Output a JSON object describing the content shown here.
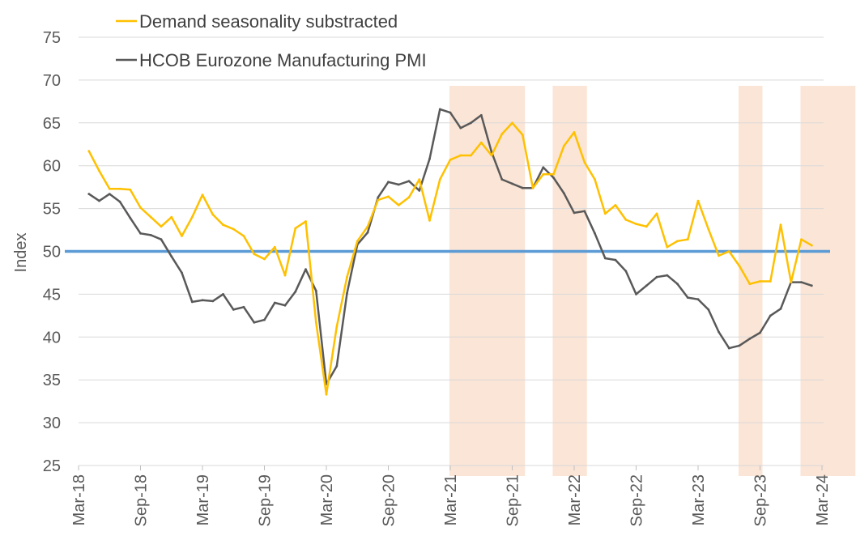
{
  "chart_data": {
    "type": "line",
    "title": "",
    "xlabel": "",
    "ylabel": "Index",
    "ylim": [
      25,
      75
    ],
    "yticks": [
      25,
      30,
      35,
      40,
      45,
      50,
      55,
      60,
      65,
      70,
      75
    ],
    "grid": "horizontal",
    "x_start": "Apr-18",
    "x_tick_labels": [
      "Mar-18",
      "Sep-18",
      "Mar-19",
      "Sep-19",
      "Mar-20",
      "Sep-20",
      "Mar-21",
      "Sep-21",
      "Mar-22",
      "Sep-22",
      "Mar-23",
      "Sep-23",
      "Mar-24"
    ],
    "reference_line": {
      "value": 50,
      "color": "#5B9BD5"
    },
    "shaded_periods": [
      {
        "from_month": 36,
        "to_month": 43
      },
      {
        "from_month": 46,
        "to_month": 49
      },
      {
        "from_month": 64,
        "to_month": 66
      },
      {
        "from_month": 70,
        "to_month": 75
      }
    ],
    "legend_position": "top-left",
    "series": [
      {
        "name": "Demand seasonality substracted",
        "color": "#FFC000",
        "values": [
          61.7,
          59.4,
          57.3,
          57.3,
          57.2,
          55.1,
          54.0,
          52.9,
          54.0,
          51.8,
          54.0,
          56.6,
          54.3,
          53.1,
          52.6,
          51.8,
          49.7,
          49.1,
          50.5,
          47.2,
          52.7,
          53.5,
          41.7,
          33.3,
          41.2,
          47.0,
          51.2,
          52.9,
          56.0,
          56.4,
          55.4,
          56.3,
          58.4,
          53.6,
          58.4,
          60.7,
          61.2,
          61.2,
          62.7,
          61.2,
          63.7,
          65.0,
          63.6,
          57.4,
          59.0,
          59.0,
          62.3,
          63.9,
          60.4,
          58.4,
          54.4,
          55.4,
          53.7,
          53.2,
          52.9,
          54.4,
          50.5,
          51.2,
          51.4,
          55.9,
          52.6,
          49.5,
          50.0,
          48.3,
          46.2,
          46.5,
          46.5,
          53.1,
          46.4,
          51.4,
          50.7
        ]
      },
      {
        "name": "HCOB Eurozone Manufacturing PMI",
        "color": "#595959",
        "values": [
          56.7,
          55.9,
          56.7,
          55.8,
          53.9,
          52.1,
          51.9,
          51.4,
          49.4,
          47.5,
          44.1,
          44.3,
          44.2,
          45.0,
          43.2,
          43.5,
          41.7,
          42.0,
          44.0,
          43.7,
          45.3,
          47.9,
          45.4,
          34.5,
          36.6,
          45.1,
          50.8,
          52.2,
          56.3,
          58.1,
          57.8,
          58.2,
          57.1,
          60.8,
          66.6,
          66.2,
          64.4,
          65.0,
          65.9,
          61.6,
          58.4,
          57.9,
          57.4,
          57.4,
          59.8,
          58.6,
          56.8,
          54.5,
          54.7,
          52.1,
          49.2,
          49.0,
          47.7,
          45.0,
          46.0,
          47.0,
          47.2,
          46.2,
          44.6,
          44.4,
          43.2,
          40.6,
          38.7,
          39.0,
          39.8,
          40.5,
          42.5,
          43.3,
          46.4,
          46.4,
          46.0
        ]
      }
    ]
  }
}
